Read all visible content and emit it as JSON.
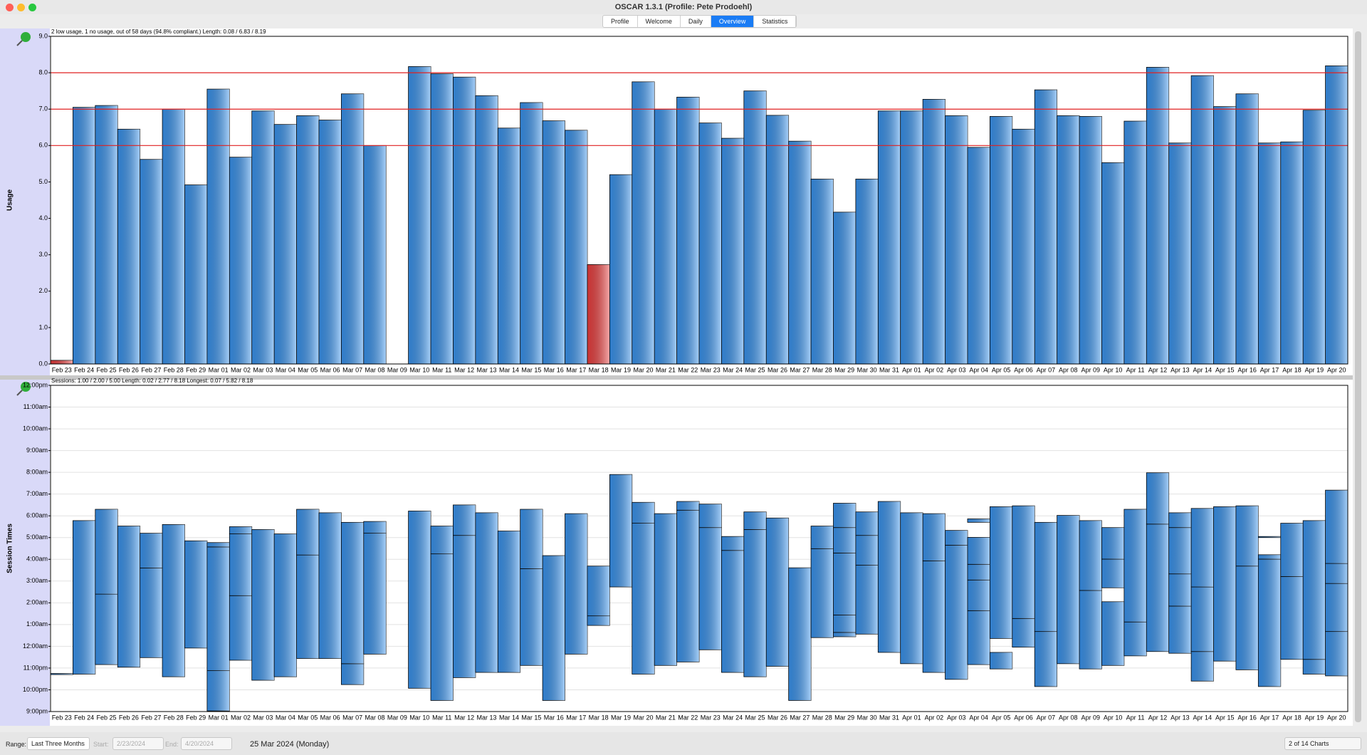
{
  "window": {
    "title": "OSCAR 1.3.1 (Profile: Pete Prodoehl)"
  },
  "tabs": [
    {
      "label": "Profile"
    },
    {
      "label": "Welcome"
    },
    {
      "label": "Daily"
    },
    {
      "label": "Overview",
      "active": true
    },
    {
      "label": "Statistics"
    }
  ],
  "chart_data": [
    {
      "type": "bar",
      "summary": "2 low usage, 1 no usage, out of 58 days (94.8% compliant.) Length: 0.08 / 6.83 / 8.19",
      "y_label": "Usage",
      "categories": [
        "Feb 23",
        "Feb 24",
        "Feb 25",
        "Feb 26",
        "Feb 27",
        "Feb 28",
        "Feb 29",
        "Mar 01",
        "Mar 02",
        "Mar 03",
        "Mar 04",
        "Mar 05",
        "Mar 06",
        "Mar 07",
        "Mar 08",
        "Mar 09",
        "Mar 10",
        "Mar 11",
        "Mar 12",
        "Mar 13",
        "Mar 14",
        "Mar 15",
        "Mar 16",
        "Mar 17",
        "Mar 18",
        "Mar 19",
        "Mar 20",
        "Mar 21",
        "Mar 22",
        "Mar 23",
        "Mar 24",
        "Mar 25",
        "Mar 26",
        "Mar 27",
        "Mar 28",
        "Mar 29",
        "Mar 30",
        "Mar 31",
        "Apr 01",
        "Apr 02",
        "Apr 03",
        "Apr 04",
        "Apr 05",
        "Apr 06",
        "Apr 07",
        "Apr 08",
        "Apr 09",
        "Apr 10",
        "Apr 11",
        "Apr 12",
        "Apr 13",
        "Apr 14",
        "Apr 15",
        "Apr 16",
        "Apr 17",
        "Apr 18",
        "Apr 19",
        "Apr 20"
      ],
      "values": [
        0.1,
        7.05,
        7.1,
        6.45,
        5.62,
        7.0,
        4.92,
        7.55,
        5.68,
        6.95,
        6.58,
        6.82,
        6.7,
        7.42,
        6.0,
        0,
        8.17,
        7.97,
        7.88,
        7.37,
        6.48,
        7.18,
        6.68,
        6.42,
        2.73,
        5.2,
        7.75,
        7.0,
        7.33,
        6.62,
        6.2,
        7.5,
        6.83,
        6.12,
        5.08,
        4.17,
        5.08,
        6.95,
        6.95,
        7.27,
        6.82,
        5.95,
        6.8,
        6.45,
        7.53,
        6.82,
        6.8,
        5.53,
        6.67,
        8.15,
        6.07,
        7.92,
        7.07,
        7.42,
        6.07,
        6.1,
        6.97,
        8.19
      ],
      "colors": [
        "#f04040",
        "#3a96f2",
        "#3a96f2",
        "#3a96f2",
        "#3a96f2",
        "#3a96f2",
        "#3a96f2",
        "#3a96f2",
        "#3a96f2",
        "#3a96f2",
        "#3a96f2",
        "#3a96f2",
        "#3a96f2",
        "#3a96f2",
        "#3a96f2",
        "#3a96f2",
        "#3a96f2",
        "#3a96f2",
        "#3a96f2",
        "#3a96f2",
        "#3a96f2",
        "#3a96f2",
        "#3a96f2",
        "#3a96f2",
        "#f04040",
        "#3a96f2",
        "#3a96f2",
        "#3a96f2",
        "#3a96f2",
        "#3a96f2",
        "#3a96f2",
        "#3a96f2",
        "#3a96f2",
        "#3a96f2",
        "#3a96f2",
        "#3a96f2",
        "#3a96f2",
        "#3a96f2",
        "#3a96f2",
        "#3a96f2",
        "#3a96f2",
        "#3a96f2",
        "#3a96f2",
        "#3a96f2",
        "#3a96f2",
        "#3a96f2",
        "#3a96f2",
        "#3a96f2",
        "#3a96f2",
        "#3a96f2",
        "#3a96f2",
        "#3a96f2",
        "#3a96f2",
        "#3a96f2",
        "#3a96f2",
        "#3a96f2",
        "#3a96f2",
        "#3a96f2"
      ],
      "ylim": [
        0,
        9
      ],
      "yticks": [
        {
          "value": 0,
          "label": "0.0"
        },
        {
          "value": 1,
          "label": "1.0"
        },
        {
          "value": 2,
          "label": "2.0"
        },
        {
          "value": 3,
          "label": "3.0"
        },
        {
          "value": 4,
          "label": "4.0"
        },
        {
          "value": 5,
          "label": "5.0"
        },
        {
          "value": 6,
          "label": "6.0"
        },
        {
          "value": 7,
          "label": "7.0"
        },
        {
          "value": 8,
          "label": "8.0"
        },
        {
          "value": 9,
          "label": "9.0"
        }
      ],
      "grid": false,
      "reference_lines": {
        "values": [
          6,
          7,
          8
        ],
        "color": "#e02020"
      }
    },
    {
      "type": "range",
      "summary": "Sessions: 1.00 / 2.00 / 5.00 Length: 0.02 / 2.77 / 8.18 Longest: 0.07 / 5.82 / 8.18",
      "y_label": "Session Times",
      "categories": [
        "Feb 23",
        "Feb 24",
        "Feb 25",
        "Feb 26",
        "Feb 27",
        "Feb 28",
        "Feb 29",
        "Mar 01",
        "Mar 02",
        "Mar 03",
        "Mar 04",
        "Mar 05",
        "Mar 06",
        "Mar 07",
        "Mar 08",
        "Mar 09",
        "Mar 10",
        "Mar 11",
        "Mar 12",
        "Mar 13",
        "Mar 14",
        "Mar 15",
        "Mar 16",
        "Mar 17",
        "Mar 18",
        "Mar 19",
        "Mar 20",
        "Mar 21",
        "Mar 22",
        "Mar 23",
        "Mar 24",
        "Mar 25",
        "Mar 26",
        "Mar 27",
        "Mar 28",
        "Mar 29",
        "Mar 30",
        "Mar 31",
        "Apr 01",
        "Apr 02",
        "Apr 03",
        "Apr 04",
        "Apr 05",
        "Apr 06",
        "Apr 07",
        "Apr 08",
        "Apr 09",
        "Apr 10",
        "Apr 11",
        "Apr 12",
        "Apr 13",
        "Apr 14",
        "Apr 15",
        "Apr 16",
        "Apr 17",
        "Apr 18",
        "Apr 19",
        "Apr 20"
      ],
      "sessions": [
        [
          [
            -1.3,
            -1.25
          ]
        ],
        [
          [
            -1.28,
            5.78
          ]
        ],
        [
          [
            -0.84,
            2.4
          ],
          [
            2.4,
            6.3
          ]
        ],
        [
          [
            -0.96,
            5.53
          ]
        ],
        [
          [
            -0.52,
            3.6
          ],
          [
            3.6,
            5.2
          ]
        ],
        [
          [
            -1.4,
            5.6
          ]
        ],
        [
          [
            -0.08,
            4.85
          ]
        ],
        [
          [
            -2.97,
            -1.12
          ],
          [
            -1.12,
            4.57
          ],
          [
            4.57,
            4.77
          ]
        ],
        [
          [
            -0.64,
            2.33
          ],
          [
            2.33,
            5.17
          ],
          [
            5.17,
            5.5
          ]
        ],
        [
          [
            -1.56,
            5.37
          ]
        ],
        [
          [
            -1.4,
            5.17
          ]
        ],
        [
          [
            -0.56,
            4.2
          ],
          [
            4.2,
            6.3
          ]
        ],
        [
          [
            -0.56,
            6.14
          ]
        ],
        [
          [
            -1.76,
            -0.8
          ],
          [
            -0.8,
            5.7
          ]
        ],
        [
          [
            -0.36,
            5.2
          ],
          [
            5.2,
            5.74
          ]
        ],
        [],
        [
          [
            -1.93,
            6.22
          ]
        ],
        [
          [
            -2.49,
            4.25
          ],
          [
            4.25,
            5.53
          ]
        ],
        [
          [
            -1.44,
            5.1
          ],
          [
            5.1,
            6.5
          ]
        ],
        [
          [
            -1.2,
            6.14
          ]
        ],
        [
          [
            -1.2,
            5.3
          ]
        ],
        [
          [
            -0.88,
            3.57
          ],
          [
            3.57,
            6.3
          ]
        ],
        [
          [
            -2.49,
            4.17
          ]
        ],
        [
          [
            -0.36,
            6.1
          ]
        ],
        [
          [
            0.96,
            1.4
          ],
          [
            1.4,
            3.69
          ]
        ],
        [
          [
            2.73,
            7.9
          ]
        ],
        [
          [
            -1.28,
            5.66
          ],
          [
            5.66,
            6.62
          ]
        ],
        [
          [
            -0.88,
            6.1
          ]
        ],
        [
          [
            -0.72,
            6.26
          ],
          [
            6.26,
            6.66
          ]
        ],
        [
          [
            -0.16,
            5.46
          ],
          [
            5.46,
            6.54
          ]
        ],
        [
          [
            -1.2,
            4.41
          ],
          [
            4.41,
            5.05
          ]
        ],
        [
          [
            -1.4,
            5.37
          ],
          [
            5.37,
            6.18
          ]
        ],
        [
          [
            -0.92,
            5.9
          ]
        ],
        [
          [
            -2.49,
            3.61
          ]
        ],
        [
          [
            0.4,
            4.49
          ],
          [
            4.49,
            5.53
          ]
        ],
        [
          [
            0.44,
            0.64
          ],
          [
            0.64,
            1.44
          ],
          [
            1.44,
            4.29
          ],
          [
            4.29,
            5.46
          ],
          [
            5.46,
            6.58
          ]
        ],
        [
          [
            0.56,
            3.73
          ],
          [
            3.73,
            5.1
          ],
          [
            5.1,
            6.18
          ]
        ],
        [
          [
            -0.28,
            6.66
          ]
        ],
        [
          [
            -0.8,
            6.14
          ]
        ],
        [
          [
            -1.2,
            3.93
          ],
          [
            3.93,
            6.1
          ]
        ],
        [
          [
            -1.52,
            4.65
          ],
          [
            4.65,
            5.33
          ]
        ],
        [
          [
            -0.84,
            1.64
          ],
          [
            1.64,
            3.05
          ],
          [
            3.05,
            3.77
          ],
          [
            3.77,
            5.01
          ],
          [
            5.7,
            5.86
          ]
        ],
        [
          [
            -1.04,
            -0.28
          ],
          [
            0.36,
            6.42
          ]
        ],
        [
          [
            -0.04,
            1.28
          ],
          [
            1.28,
            6.46
          ]
        ],
        [
          [
            -1.85,
            0.68
          ],
          [
            0.68,
            5.7
          ]
        ],
        [
          [
            -0.8,
            6.02
          ]
        ],
        [
          [
            -1.04,
            2.57
          ],
          [
            2.57,
            5.78
          ]
        ],
        [
          [
            -0.88,
            2.05
          ],
          [
            2.69,
            4.01
          ],
          [
            4.01,
            5.46
          ]
        ],
        [
          [
            -0.44,
            1.12
          ],
          [
            1.12,
            6.3
          ]
        ],
        [
          [
            -0.24,
            5.62
          ],
          [
            5.62,
            7.98
          ]
        ],
        [
          [
            -0.32,
            1.85
          ],
          [
            1.85,
            3.33
          ],
          [
            3.33,
            5.46
          ],
          [
            5.46,
            6.14
          ]
        ],
        [
          [
            -1.6,
            -0.24
          ],
          [
            -0.24,
            2.73
          ],
          [
            2.73,
            6.34
          ]
        ],
        [
          [
            -0.68,
            6.42
          ]
        ],
        [
          [
            -1.08,
            3.69
          ],
          [
            3.69,
            6.46
          ]
        ],
        [
          [
            -1.85,
            4.01
          ],
          [
            4.01,
            4.21
          ],
          [
            5.0,
            5.05
          ]
        ],
        [
          [
            -0.6,
            3.21
          ],
          [
            3.21,
            5.66
          ]
        ],
        [
          [
            -1.28,
            -0.6
          ],
          [
            -0.6,
            5.78
          ]
        ],
        [
          [
            -1.36,
            0.68
          ],
          [
            0.68,
            2.89
          ],
          [
            2.89,
            3.81
          ],
          [
            3.81,
            7.18
          ]
        ]
      ],
      "color": "#3a96f2",
      "ylim": [
        -3,
        12
      ],
      "yticks": [
        {
          "value": -3,
          "label": "9:00pm"
        },
        {
          "value": -2,
          "label": "10:00pm"
        },
        {
          "value": -1,
          "label": "11:00pm"
        },
        {
          "value": 0,
          "label": "12:00am"
        },
        {
          "value": 1,
          "label": "1:00am"
        },
        {
          "value": 2,
          "label": "2:00am"
        },
        {
          "value": 3,
          "label": "3:00am"
        },
        {
          "value": 4,
          "label": "4:00am"
        },
        {
          "value": 5,
          "label": "5:00am"
        },
        {
          "value": 6,
          "label": "6:00am"
        },
        {
          "value": 7,
          "label": "7:00am"
        },
        {
          "value": 8,
          "label": "8:00am"
        },
        {
          "value": 9,
          "label": "9:00am"
        },
        {
          "value": 10,
          "label": "10:00am"
        },
        {
          "value": 11,
          "label": "11:00am"
        },
        {
          "value": 12,
          "label": "12:00pm"
        }
      ],
      "grid": true
    }
  ],
  "footer": {
    "range_label": "Range:",
    "range_value": "Last Three Months",
    "start_label": "Start:",
    "start": "2/23/2024",
    "end_label": "End:",
    "end": "4/20/2024",
    "date": "25 Mar 2024 (Monday)",
    "charts": "2 of 14 Charts"
  }
}
